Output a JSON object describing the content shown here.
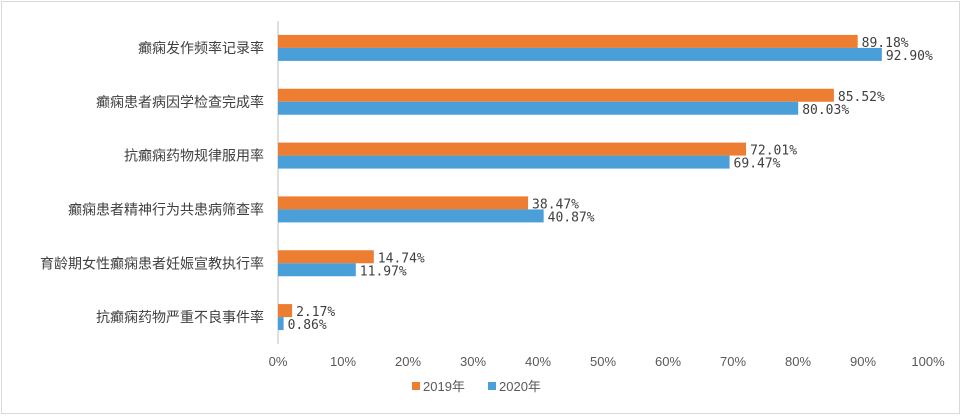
{
  "chart_data": {
    "type": "bar",
    "orientation": "horizontal",
    "categories": [
      "癫痫发作频率记录率",
      "癫痫患者病因学检查完成率",
      "抗癫痫药物规律服用率",
      "癫痫患者精神行为共患病筛查率",
      "育龄期女性癫痫患者妊娠宣教执行率",
      "抗癫痫药物严重不良事件率"
    ],
    "series": [
      {
        "name": "2019年",
        "color": "#ED7D31",
        "values": [
          89.18,
          85.52,
          72.01,
          38.47,
          14.74,
          2.17
        ],
        "labels": [
          "89.18%",
          "85.52%",
          "72.01%",
          "38.47%",
          "14.74%",
          "2.17%"
        ]
      },
      {
        "name": "2020年",
        "color": "#4A9FD8",
        "values": [
          92.9,
          80.03,
          69.47,
          40.87,
          11.97,
          0.86
        ],
        "labels": [
          "92.90%",
          "80.03%",
          "69.47%",
          "40.87%",
          "11.97%",
          "0.86%"
        ]
      }
    ],
    "xlim": [
      0,
      100
    ],
    "xticks": [
      "0%",
      "10%",
      "20%",
      "30%",
      "40%",
      "50%",
      "60%",
      "70%",
      "80%",
      "90%",
      "100%"
    ],
    "legend_position": "bottom",
    "grid": false
  }
}
